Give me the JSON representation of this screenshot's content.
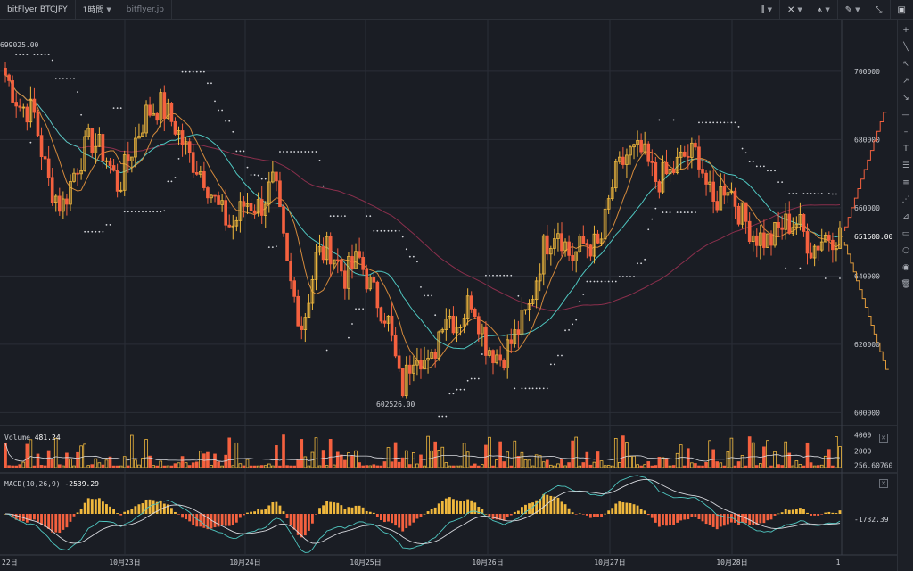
{
  "topbar": {
    "symbol": "bitFlyer BTCJPY",
    "interval": "1時間",
    "url": "bitflyer.jp",
    "buttons": [
      "bar-chart-icon",
      "indicators-icon",
      "pen-icon",
      "fullscreen-icon",
      "screenshot-icon"
    ]
  },
  "colors": {
    "background": "#1a1d24",
    "grid": "#2a2e37",
    "up": "#f0b83d",
    "down": "#f4613f",
    "ma_fast": "#d48a3c",
    "ma_slow": "#4fc6c0",
    "ma_long": "#8a2f4c",
    "sar": "#d7d9de",
    "macd_line": "#4fc6c0",
    "signal_line": "#d7d9de",
    "hist_pos": "#f0b83d",
    "hist_neg": "#f4613f",
    "depth_bid": "#e09b3c",
    "depth_ask": "#f4613f"
  },
  "price_axis": {
    "ticks": [
      "700000",
      "680000",
      "660000",
      "640000",
      "620000",
      "600000"
    ],
    "current_price": "651600.00",
    "high_label": "699025.00",
    "low_label": "602526.00"
  },
  "volume_pane": {
    "label": "Volume",
    "value": "481.24",
    "ticks": [
      "4000",
      "2000",
      "256.60760"
    ]
  },
  "macd_pane": {
    "label": "MACD(10,26,9)",
    "value": "-2539.29",
    "axis_value": "-1732.39"
  },
  "time_axis": {
    "labels": [
      "22日",
      "10月23日",
      "10月24日",
      "10月25日",
      "10月26日",
      "10月27日",
      "10月28日",
      "1"
    ]
  },
  "right_tools": [
    "crosshair-icon",
    "line-icon",
    "arrow-icon",
    "arrow-down-icon",
    "horizontal-line-icon",
    "minus-icon",
    "text-icon",
    "channel-icon",
    "fib-icon",
    "pattern-icon",
    "circle-icon",
    "eye-icon",
    "trash-icon"
  ],
  "chart_data": {
    "type": "candlestick",
    "symbol": "BTCJPY",
    "ylim": [
      598000,
      712000
    ],
    "candles_anchor_closes": [
      699000,
      690000,
      688000,
      668000,
      660000,
      672000,
      680000,
      676000,
      666000,
      678000,
      688000,
      690000,
      684000,
      675000,
      670000,
      660000,
      654000,
      662000,
      660000,
      668000,
      640000,
      625000,
      646000,
      648000,
      640000,
      645000,
      635000,
      628000,
      606000,
      620000,
      612000,
      630000,
      626000,
      634000,
      620000,
      616000,
      622000,
      630000,
      648000,
      655000,
      645000,
      650000,
      648000,
      668000,
      676000,
      676000,
      668000,
      670000,
      675000,
      676000,
      660000,
      668000,
      658000,
      652000,
      650000,
      655000,
      656000,
      648000,
      652000,
      652000
    ],
    "volume_ylim": [
      0,
      4600
    ],
    "macd_ylim": [
      -12000,
      12000
    ]
  }
}
